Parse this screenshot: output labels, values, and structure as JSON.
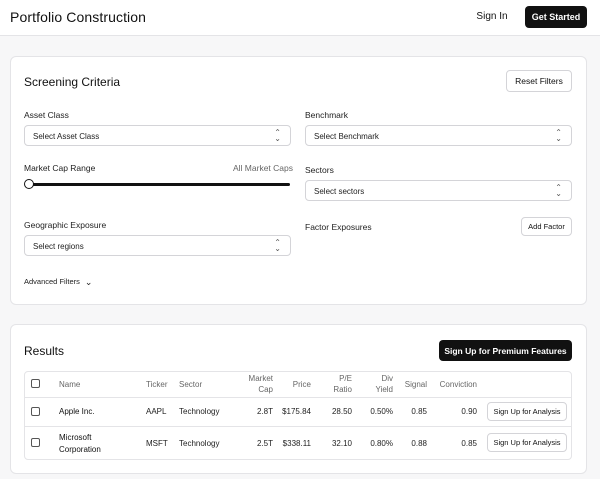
{
  "header": {
    "title": "Portfolio Construction",
    "sign_in": "Sign In",
    "get_started": "Get Started"
  },
  "criteria": {
    "title": "Screening Criteria",
    "reset": "Reset Filters",
    "asset_class": {
      "label": "Asset Class",
      "value": "Select Asset Class"
    },
    "benchmark": {
      "label": "Benchmark",
      "value": "Select Benchmark"
    },
    "market_cap": {
      "label": "Market Cap Range",
      "hint": "All Market Caps",
      "slider_value": 0
    },
    "sectors": {
      "label": "Sectors",
      "value": "Select sectors"
    },
    "geo": {
      "label": "Geographic Exposure",
      "value": "Select regions"
    },
    "factor": {
      "label": "Factor Exposures",
      "add": "Add Factor"
    },
    "advanced": "Advanced Filters"
  },
  "results": {
    "title": "Results",
    "premium": "Sign Up for Premium Features",
    "columns": {
      "name": "Name",
      "ticker": "Ticker",
      "sector": "Sector",
      "mcap_1": "Market",
      "mcap_2": "Cap",
      "price": "Price",
      "pe_1": "P/E",
      "pe_2": "Ratio",
      "div_1": "Div",
      "div_2": "Yield",
      "signal": "Signal",
      "conviction": "Conviction"
    },
    "rows": [
      {
        "name_1": "Apple Inc.",
        "name_2": "",
        "ticker": "AAPL",
        "sector": "Technology",
        "mcap": "2.8T",
        "price": "$175.84",
        "pe": "28.50",
        "div": "0.50%",
        "signal": "0.85",
        "conviction": "0.90",
        "action": "Sign Up for Analysis"
      },
      {
        "name_1": "Microsoft",
        "name_2": "Corporation",
        "ticker": "MSFT",
        "sector": "Technology",
        "mcap": "2.5T",
        "price": "$338.11",
        "pe": "32.10",
        "div": "0.80%",
        "signal": "0.88",
        "conviction": "0.85",
        "action": "Sign Up for Analysis"
      }
    ]
  }
}
